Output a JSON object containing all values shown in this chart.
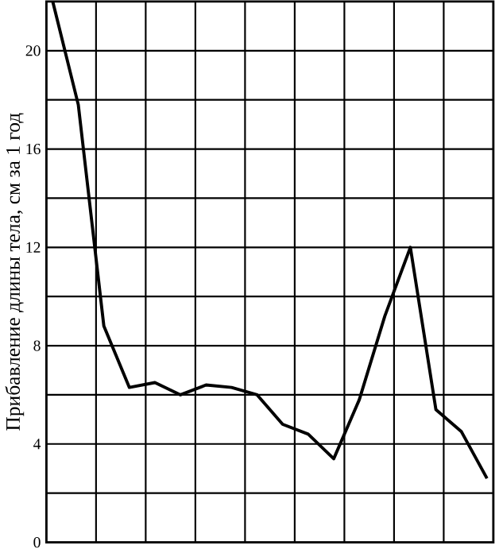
{
  "chart_data": {
    "type": "line",
    "ylabel": "Прибавление длины тела, см за 1 год",
    "categories": [
      null,
      null,
      null,
      null,
      null,
      null,
      null,
      null,
      null,
      null,
      null,
      null,
      null,
      null,
      null,
      null,
      null,
      null
    ],
    "values": [
      22,
      17.8,
      8.8,
      6.3,
      6.5,
      6.0,
      6.4,
      6.3,
      6.0,
      4.8,
      4.4,
      3.4,
      5.8,
      9.2,
      12.0,
      5.4,
      4.5,
      2.6
    ],
    "color": "#000000",
    "ylim": [
      0,
      22
    ],
    "yticks": [
      0,
      {
        "value": 2,
        "label": null
      },
      4,
      {
        "value": 6,
        "label": null
      },
      8,
      {
        "value": 10,
        "label": null
      },
      12,
      {
        "value": 14,
        "label": null
      },
      16,
      {
        "value": 18,
        "label": null
      },
      20
    ],
    "grid": true,
    "marker": "none",
    "line_style": "solid"
  }
}
